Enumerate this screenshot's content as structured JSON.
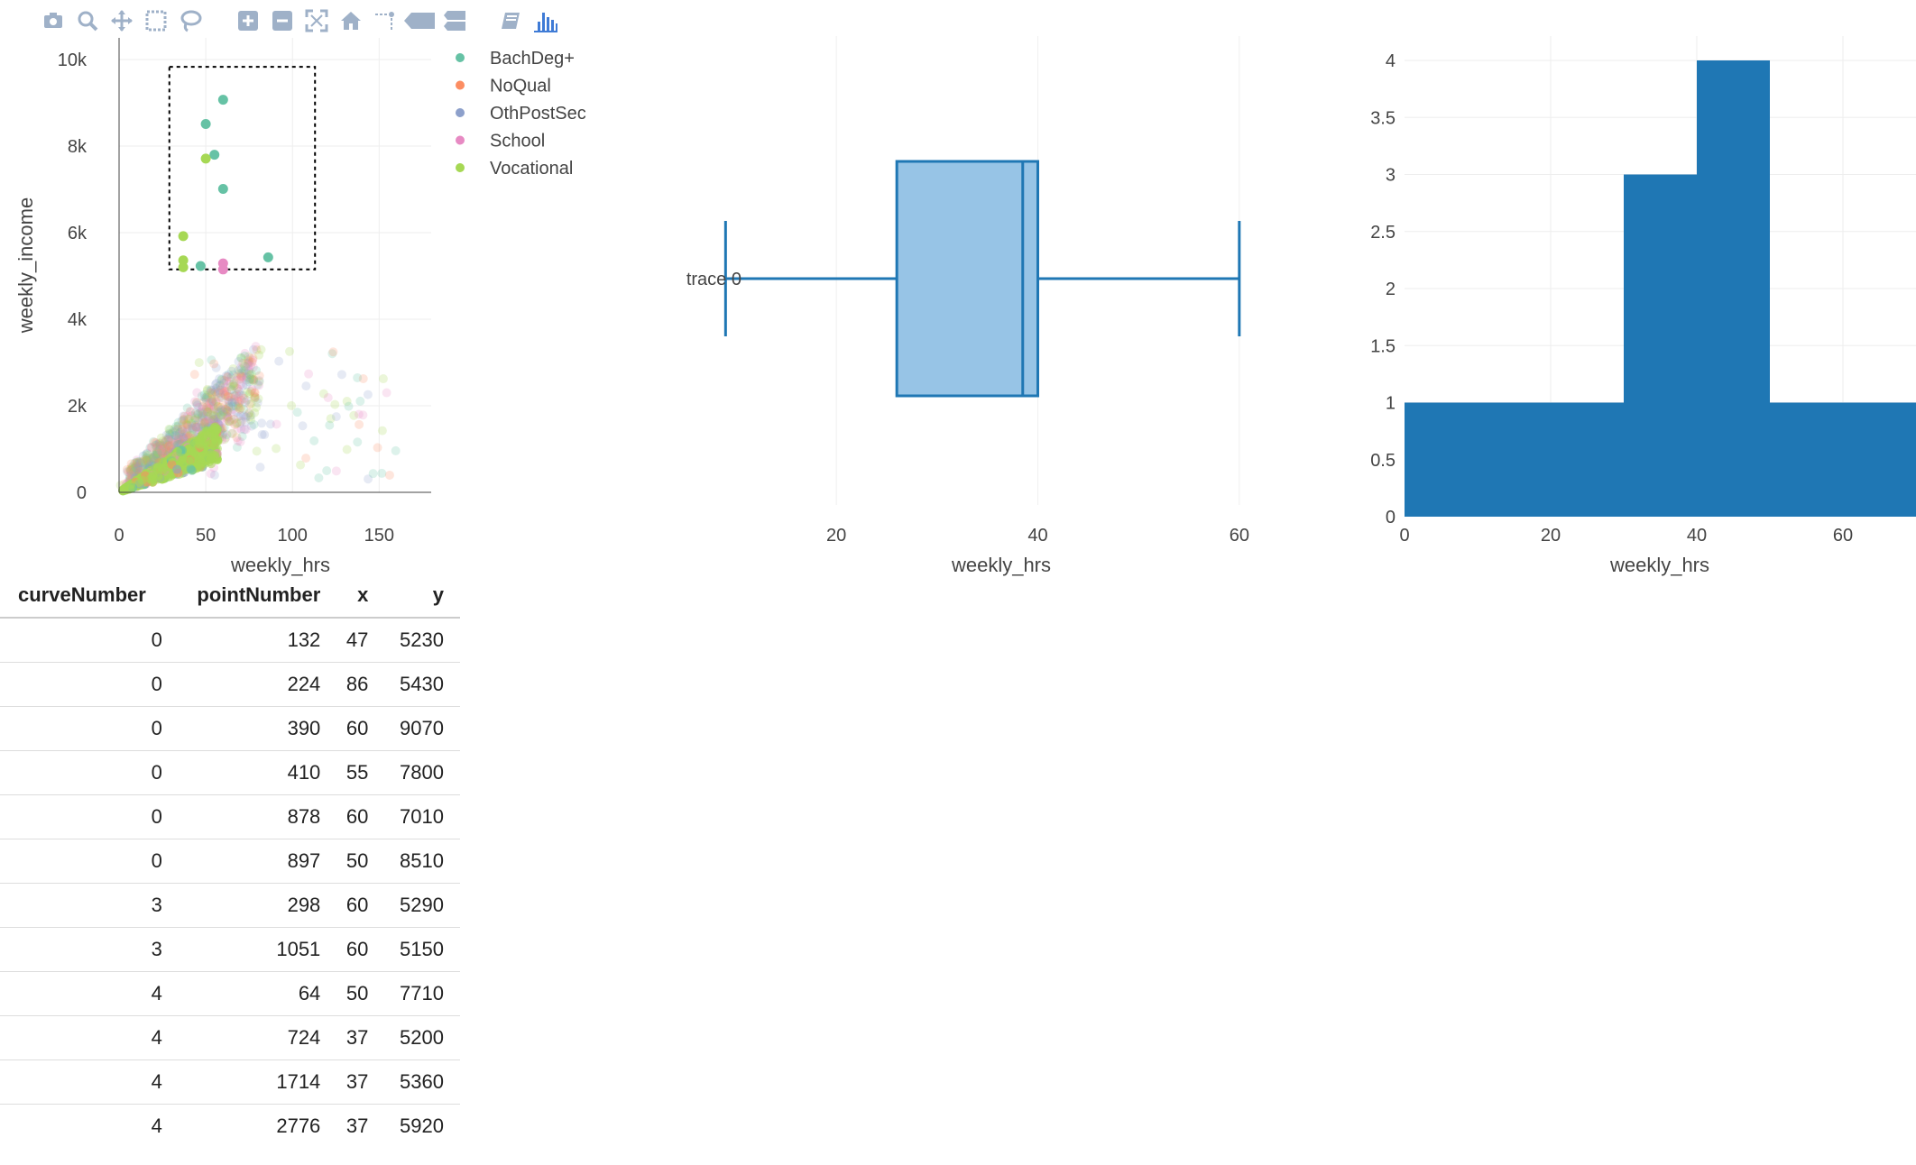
{
  "colors": {
    "BachDeg+": "#66c2a5",
    "NoQual": "#fc8d62",
    "OthPostSec": "#8da0cb",
    "School": "#e78ac3",
    "Vocational": "#a6d854",
    "box_line": "#1f77b4",
    "box_fill": "#97c4e6",
    "hist_fill": "#1f77b4",
    "modebar_icon": "#9fb1c8",
    "modebar_logo": "#3f7bd6"
  },
  "modebar": {
    "buttons": [
      "camera-icon",
      "zoom-icon",
      "pan-icon",
      "box-select-icon",
      "lasso-icon",
      "zoom-in-icon",
      "zoom-out-icon",
      "autoscale-icon",
      "reset-axes-icon",
      "spike-lines-icon",
      "hover-closest-icon",
      "hover-compare-icon",
      "edit-chart-icon",
      "plotly-logo-icon"
    ]
  },
  "chart_data": [
    {
      "type": "scatter",
      "xlabel": "weekly_hrs",
      "ylabel": "weekly_income",
      "x_ticks": [
        "0",
        "50",
        "100",
        "150"
      ],
      "x_tick_values": [
        0,
        50,
        100,
        150
      ],
      "y_ticks": [
        "0",
        "2k",
        "4k",
        "6k",
        "8k",
        "10k"
      ],
      "y_tick_values": [
        0,
        2000,
        4000,
        6000,
        8000,
        10000
      ],
      "xlim": [
        0,
        180
      ],
      "ylim": [
        0,
        10500
      ],
      "legend": [
        "BachDeg+",
        "NoQual",
        "OthPostSec",
        "School",
        "Vocational"
      ],
      "legend_position": "top-right",
      "selection_box": {
        "x0": 29,
        "x1": 113,
        "y0": 5150,
        "y1": 9830
      },
      "selected_points": [
        {
          "series": "BachDeg+",
          "x": 47,
          "y": 5230
        },
        {
          "series": "BachDeg+",
          "x": 86,
          "y": 5430
        },
        {
          "series": "BachDeg+",
          "x": 60,
          "y": 9070
        },
        {
          "series": "BachDeg+",
          "x": 55,
          "y": 7800
        },
        {
          "series": "BachDeg+",
          "x": 60,
          "y": 7010
        },
        {
          "series": "BachDeg+",
          "x": 50,
          "y": 8510
        },
        {
          "series": "School",
          "x": 60,
          "y": 5290
        },
        {
          "series": "School",
          "x": 60,
          "y": 5150
        },
        {
          "series": "Vocational",
          "x": 50,
          "y": 7710
        },
        {
          "series": "Vocational",
          "x": 37,
          "y": 5200
        },
        {
          "series": "Vocational",
          "x": 37,
          "y": 5360
        },
        {
          "series": "Vocational",
          "x": 37,
          "y": 5920
        }
      ]
    },
    {
      "type": "box",
      "trace_name": "trace 0",
      "xlabel": "weekly_hrs",
      "x_ticks": [
        "20",
        "40",
        "60"
      ],
      "x_tick_values": [
        20,
        40,
        60
      ],
      "xlim": [
        7,
        67
      ],
      "min": 9,
      "q1": 26,
      "median": 38.5,
      "q3": 40,
      "max": 60
    },
    {
      "type": "histogram",
      "xlabel": "weekly_hrs",
      "x_ticks": [
        "0",
        "20",
        "40",
        "60"
      ],
      "x_tick_values": [
        0,
        20,
        40,
        60
      ],
      "y_ticks": [
        "0",
        "0.5",
        "1",
        "1.5",
        "2",
        "2.5",
        "3",
        "3.5",
        "4"
      ],
      "y_tick_values": [
        0,
        0.5,
        1,
        1.5,
        2,
        2.5,
        3,
        3.5,
        4
      ],
      "xlim": [
        0,
        70
      ],
      "ylim": [
        0,
        4.2
      ],
      "bins": [
        {
          "x0": 0,
          "x1": 30,
          "count": 1
        },
        {
          "x0": 30,
          "x1": 40,
          "count": 3
        },
        {
          "x0": 40,
          "x1": 50,
          "count": 4
        },
        {
          "x0": 50,
          "x1": 70,
          "count": 1
        }
      ]
    }
  ],
  "table": {
    "headers": [
      "curveNumber",
      "pointNumber",
      "x",
      "y"
    ],
    "rows": [
      [
        "0",
        "132",
        "47",
        "5230"
      ],
      [
        "0",
        "224",
        "86",
        "5430"
      ],
      [
        "0",
        "390",
        "60",
        "9070"
      ],
      [
        "0",
        "410",
        "55",
        "7800"
      ],
      [
        "0",
        "878",
        "60",
        "7010"
      ],
      [
        "0",
        "897",
        "50",
        "8510"
      ],
      [
        "3",
        "298",
        "60",
        "5290"
      ],
      [
        "3",
        "1051",
        "60",
        "5150"
      ],
      [
        "4",
        "64",
        "50",
        "7710"
      ],
      [
        "4",
        "724",
        "37",
        "5200"
      ],
      [
        "4",
        "1714",
        "37",
        "5360"
      ],
      [
        "4",
        "2776",
        "37",
        "5920"
      ]
    ]
  }
}
